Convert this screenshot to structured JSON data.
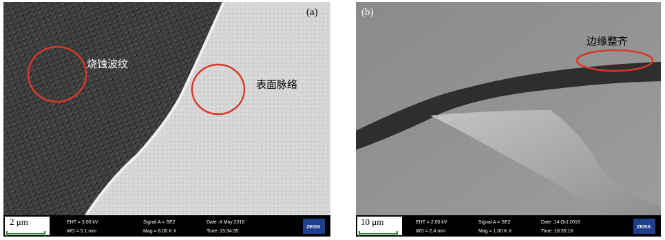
{
  "panels": [
    {
      "label": "(a)",
      "annotations": [
        "烧蚀波纹",
        "表面脉络"
      ],
      "scale_bar": "2 μm",
      "info": [
        "EHT = 3.00 kV",
        "WD = 5.1 mm",
        "Signal A = SE2",
        "Mag = 6.00 K X",
        "Date :4 May 2016",
        "Time :15:34:35"
      ],
      "logo": "ZEISS"
    },
    {
      "label": "(b)",
      "annotations": [
        "边缘整齐"
      ],
      "scale_bar": "10 μm",
      "info": [
        "EHT = 2.00 kV",
        "WD = 2.4 mm",
        "Signal A = SE2",
        "Mag = 1.00 K X",
        "Date :14 Oct 2016",
        "Time :18:35:16"
      ],
      "logo": "ZEISS"
    }
  ]
}
